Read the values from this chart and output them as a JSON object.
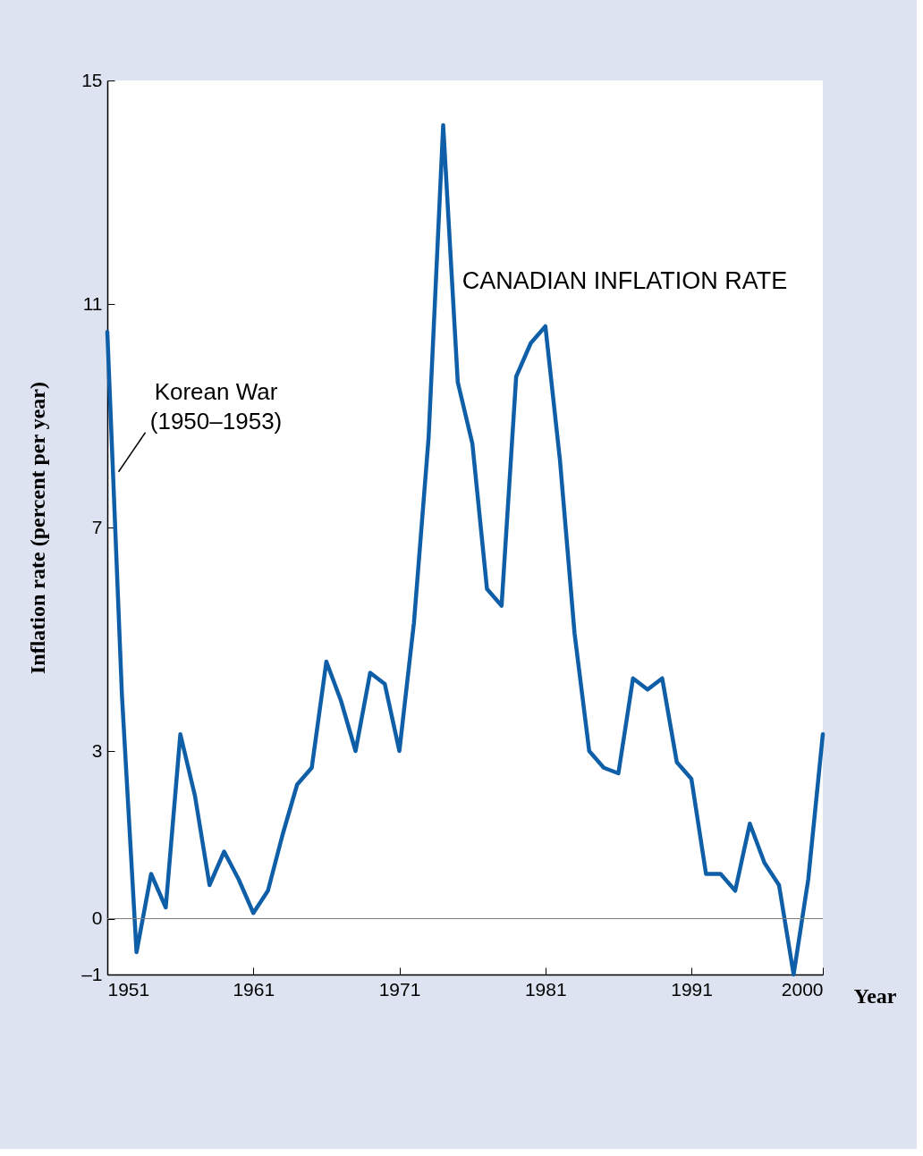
{
  "chart_data": {
    "type": "line",
    "xlabel": "Year",
    "ylabel": "Inflation rate (percent per year)",
    "x": [
      1951,
      1952,
      1953,
      1954,
      1955,
      1956,
      1957,
      1958,
      1959,
      1960,
      1961,
      1962,
      1963,
      1964,
      1965,
      1966,
      1967,
      1968,
      1969,
      1970,
      1971,
      1972,
      1973,
      1974,
      1975,
      1976,
      1977,
      1978,
      1979,
      1980,
      1981,
      1982,
      1983,
      1984,
      1985,
      1986,
      1987,
      1988,
      1989,
      1990,
      1991,
      1992,
      1993,
      1994,
      1995,
      1996,
      1997,
      1998,
      1999,
      2000
    ],
    "series": [
      {
        "name": "CANADIAN INFLATION RATE",
        "color": "#0f5fa8",
        "values": [
          10.5,
          4.0,
          -0.6,
          0.8,
          0.2,
          3.3,
          2.2,
          0.6,
          1.2,
          0.7,
          0.1,
          0.5,
          1.5,
          2.4,
          2.7,
          4.6,
          3.9,
          3.0,
          4.4,
          4.2,
          3.0,
          5.3,
          8.6,
          14.2,
          9.6,
          8.5,
          5.9,
          5.6,
          9.7,
          10.3,
          10.6,
          8.2,
          5.1,
          3.0,
          2.7,
          2.6,
          4.3,
          4.1,
          4.3,
          2.8,
          2.5,
          0.8,
          0.8,
          0.5,
          1.7,
          1.0,
          0.6,
          -1.0,
          0.7,
          3.3
        ]
      }
    ],
    "xlim": [
      1951,
      2000
    ],
    "xticks": [
      1951,
      1961,
      1971,
      1981,
      1991,
      2000
    ],
    "ylim": [
      -1,
      15
    ],
    "yticks": [
      15,
      11,
      7,
      3,
      0,
      {
        "value": -1,
        "label": "–1"
      }
    ],
    "ref_lines": [
      {
        "axis": "y",
        "value": 0,
        "color": "#808080"
      }
    ],
    "annotations": [
      {
        "text": "Korean War\n(1950–1953)",
        "x": 1951.4,
        "y": 7.9
      }
    ]
  }
}
